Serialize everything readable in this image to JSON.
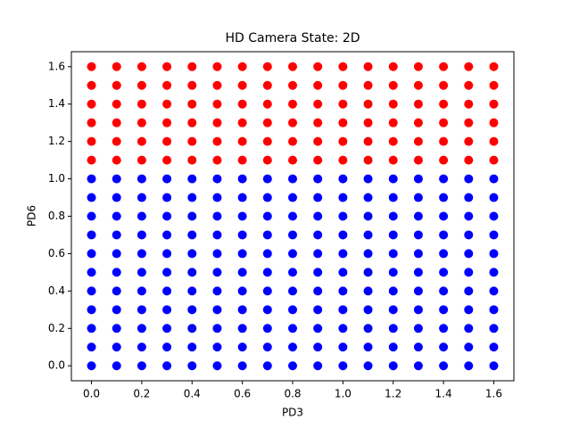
{
  "chart_data": {
    "type": "scatter",
    "title": "HD Camera State: 2D",
    "x_label": "PD3",
    "y_label": "PD6",
    "xlim": [
      -0.08,
      1.68
    ],
    "ylim": [
      -0.08,
      1.68
    ],
    "xticks": [
      {
        "value": 0,
        "label": "0.0"
      },
      0.2,
      0.4,
      0.6,
      0.8,
      {
        "value": 1,
        "label": "1.0"
      },
      1.2,
      1.4,
      1.6
    ],
    "yticks": [
      {
        "value": 0,
        "label": "0.0"
      },
      0.2,
      0.4,
      0.6,
      0.8,
      {
        "value": 1,
        "label": "1.0"
      },
      1.2,
      1.4,
      1.6
    ],
    "series": [
      {
        "color": "#0000ff",
        "x": [
          0,
          0,
          0,
          0,
          0,
          0,
          0,
          0,
          0,
          0,
          0,
          0.1,
          0.1,
          0.1,
          0.1,
          0.1,
          0.1,
          0.1,
          0.1,
          0.1,
          0.1,
          0.1,
          0.2,
          0.2,
          0.2,
          0.2,
          0.2,
          0.2,
          0.2,
          0.2,
          0.2,
          0.2,
          0.2,
          0.3,
          0.3,
          0.3,
          0.3,
          0.3,
          0.3,
          0.3,
          0.3,
          0.3,
          0.3,
          0.3,
          0.4,
          0.4,
          0.4,
          0.4,
          0.4,
          0.4,
          0.4,
          0.4,
          0.4,
          0.4,
          0.4,
          0.5,
          0.5,
          0.5,
          0.5,
          0.5,
          0.5,
          0.5,
          0.5,
          0.5,
          0.5,
          0.5,
          0.6,
          0.6,
          0.6,
          0.6,
          0.6,
          0.6,
          0.6,
          0.6,
          0.6,
          0.6,
          0.6,
          0.7,
          0.7,
          0.7,
          0.7,
          0.7,
          0.7,
          0.7,
          0.7,
          0.7,
          0.7,
          0.7,
          0.8,
          0.8,
          0.8,
          0.8,
          0.8,
          0.8,
          0.8,
          0.8,
          0.8,
          0.8,
          0.8,
          0.9,
          0.9,
          0.9,
          0.9,
          0.9,
          0.9,
          0.9,
          0.9,
          0.9,
          0.9,
          0.9,
          1,
          1,
          1,
          1,
          1,
          1,
          1,
          1,
          1,
          1,
          1,
          1.1,
          1.1,
          1.1,
          1.1,
          1.1,
          1.1,
          1.1,
          1.1,
          1.1,
          1.1,
          1.1,
          1.2,
          1.2,
          1.2,
          1.2,
          1.2,
          1.2,
          1.2,
          1.2,
          1.2,
          1.2,
          1.2,
          1.3,
          1.3,
          1.3,
          1.3,
          1.3,
          1.3,
          1.3,
          1.3,
          1.3,
          1.3,
          1.3,
          1.4,
          1.4,
          1.4,
          1.4,
          1.4,
          1.4,
          1.4,
          1.4,
          1.4,
          1.4,
          1.4,
          1.5,
          1.5,
          1.5,
          1.5,
          1.5,
          1.5,
          1.5,
          1.5,
          1.5,
          1.5,
          1.5,
          1.6,
          1.6,
          1.6,
          1.6,
          1.6,
          1.6,
          1.6,
          1.6,
          1.6,
          1.6,
          1.6
        ],
        "values": [
          0,
          0.1,
          0.2,
          0.3,
          0.4,
          0.5,
          0.6,
          0.7,
          0.8,
          0.9,
          1,
          0,
          0.1,
          0.2,
          0.3,
          0.4,
          0.5,
          0.6,
          0.7,
          0.8,
          0.9,
          1,
          0,
          0.1,
          0.2,
          0.3,
          0.4,
          0.5,
          0.6,
          0.7,
          0.8,
          0.9,
          1,
          0,
          0.1,
          0.2,
          0.3,
          0.4,
          0.5,
          0.6,
          0.7,
          0.8,
          0.9,
          1,
          0,
          0.1,
          0.2,
          0.3,
          0.4,
          0.5,
          0.6,
          0.7,
          0.8,
          0.9,
          1,
          0,
          0.1,
          0.2,
          0.3,
          0.4,
          0.5,
          0.6,
          0.7,
          0.8,
          0.9,
          1,
          0,
          0.1,
          0.2,
          0.3,
          0.4,
          0.5,
          0.6,
          0.7,
          0.8,
          0.9,
          1,
          0,
          0.1,
          0.2,
          0.3,
          0.4,
          0.5,
          0.6,
          0.7,
          0.8,
          0.9,
          1,
          0,
          0.1,
          0.2,
          0.3,
          0.4,
          0.5,
          0.6,
          0.7,
          0.8,
          0.9,
          1,
          0,
          0.1,
          0.2,
          0.3,
          0.4,
          0.5,
          0.6,
          0.7,
          0.8,
          0.9,
          1,
          0,
          0.1,
          0.2,
          0.3,
          0.4,
          0.5,
          0.6,
          0.7,
          0.8,
          0.9,
          1,
          0,
          0.1,
          0.2,
          0.3,
          0.4,
          0.5,
          0.6,
          0.7,
          0.8,
          0.9,
          1,
          0,
          0.1,
          0.2,
          0.3,
          0.4,
          0.5,
          0.6,
          0.7,
          0.8,
          0.9,
          1,
          0,
          0.1,
          0.2,
          0.3,
          0.4,
          0.5,
          0.6,
          0.7,
          0.8,
          0.9,
          1,
          0,
          0.1,
          0.2,
          0.3,
          0.4,
          0.5,
          0.6,
          0.7,
          0.8,
          0.9,
          1,
          0,
          0.1,
          0.2,
          0.3,
          0.4,
          0.5,
          0.6,
          0.7,
          0.8,
          0.9,
          1,
          0,
          0.1,
          0.2,
          0.3,
          0.4,
          0.5,
          0.6,
          0.7,
          0.8,
          0.9,
          1
        ]
      },
      {
        "color": "#ff0000",
        "x": [
          0,
          0,
          0,
          0,
          0,
          0,
          0.1,
          0.1,
          0.1,
          0.1,
          0.1,
          0.1,
          0.2,
          0.2,
          0.2,
          0.2,
          0.2,
          0.2,
          0.3,
          0.3,
          0.3,
          0.3,
          0.3,
          0.3,
          0.4,
          0.4,
          0.4,
          0.4,
          0.4,
          0.4,
          0.5,
          0.5,
          0.5,
          0.5,
          0.5,
          0.5,
          0.6,
          0.6,
          0.6,
          0.6,
          0.6,
          0.6,
          0.7,
          0.7,
          0.7,
          0.7,
          0.7,
          0.7,
          0.8,
          0.8,
          0.8,
          0.8,
          0.8,
          0.8,
          0.9,
          0.9,
          0.9,
          0.9,
          0.9,
          0.9,
          1,
          1,
          1,
          1,
          1,
          1,
          1.1,
          1.1,
          1.1,
          1.1,
          1.1,
          1.1,
          1.2,
          1.2,
          1.2,
          1.2,
          1.2,
          1.2,
          1.3,
          1.3,
          1.3,
          1.3,
          1.3,
          1.3,
          1.4,
          1.4,
          1.4,
          1.4,
          1.4,
          1.4,
          1.5,
          1.5,
          1.5,
          1.5,
          1.5,
          1.5,
          1.6,
          1.6,
          1.6,
          1.6,
          1.6,
          1.6
        ],
        "values": [
          1.1,
          1.2,
          1.3,
          1.4,
          1.5,
          1.6,
          1.1,
          1.2,
          1.3,
          1.4,
          1.5,
          1.6,
          1.1,
          1.2,
          1.3,
          1.4,
          1.5,
          1.6,
          1.1,
          1.2,
          1.3,
          1.4,
          1.5,
          1.6,
          1.1,
          1.2,
          1.3,
          1.4,
          1.5,
          1.6,
          1.1,
          1.2,
          1.3,
          1.4,
          1.5,
          1.6,
          1.1,
          1.2,
          1.3,
          1.4,
          1.5,
          1.6,
          1.1,
          1.2,
          1.3,
          1.4,
          1.5,
          1.6,
          1.1,
          1.2,
          1.3,
          1.4,
          1.5,
          1.6,
          1.1,
          1.2,
          1.3,
          1.4,
          1.5,
          1.6,
          1.1,
          1.2,
          1.3,
          1.4,
          1.5,
          1.6,
          1.1,
          1.2,
          1.3,
          1.4,
          1.5,
          1.6,
          1.1,
          1.2,
          1.3,
          1.4,
          1.5,
          1.6,
          1.1,
          1.2,
          1.3,
          1.4,
          1.5,
          1.6,
          1.1,
          1.2,
          1.3,
          1.4,
          1.5,
          1.6,
          1.1,
          1.2,
          1.3,
          1.4,
          1.5,
          1.6,
          1.1,
          1.2,
          1.3,
          1.4,
          1.5,
          1.6
        ]
      }
    ]
  }
}
